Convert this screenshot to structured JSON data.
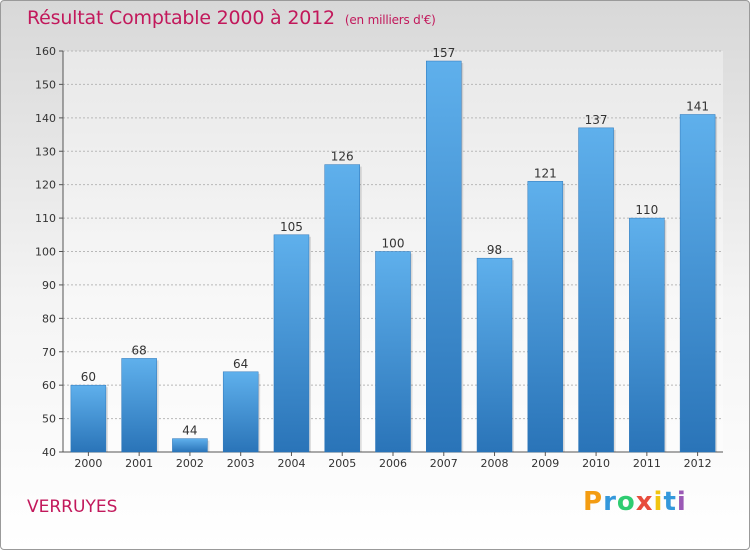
{
  "title": "Résultat Comptable 2000 à 2012",
  "title_unit": "(en milliers d'€)",
  "location": "VERRUYES",
  "logo": {
    "text": "Proxiti",
    "letters": [
      {
        "ch": "P",
        "color": "#f39c12"
      },
      {
        "ch": "r",
        "color": "#3498db"
      },
      {
        "ch": "o",
        "color": "#2ecc71"
      },
      {
        "ch": "x",
        "color": "#e74c3c"
      },
      {
        "ch": "i",
        "color": "#f1c40f"
      },
      {
        "ch": "t",
        "color": "#3498db"
      },
      {
        "ch": "i",
        "color": "#9b59b6"
      }
    ]
  },
  "colors": {
    "bar": "#3d8fd6",
    "bar_light": "#5fb0ec",
    "bar_dark": "#2a74b8",
    "title": "#c2185b"
  },
  "chart_data": {
    "type": "bar",
    "categories": [
      "2000",
      "2001",
      "2002",
      "2003",
      "2004",
      "2005",
      "2006",
      "2007",
      "2008",
      "2009",
      "2010",
      "2011",
      "2012"
    ],
    "values": [
      60,
      68,
      44,
      64,
      105,
      126,
      100,
      157,
      98,
      121,
      137,
      110,
      141
    ],
    "ylim": [
      40,
      160
    ],
    "yticks": [
      40,
      50,
      60,
      70,
      80,
      90,
      100,
      110,
      120,
      130,
      140,
      150,
      160
    ],
    "grid": true
  }
}
